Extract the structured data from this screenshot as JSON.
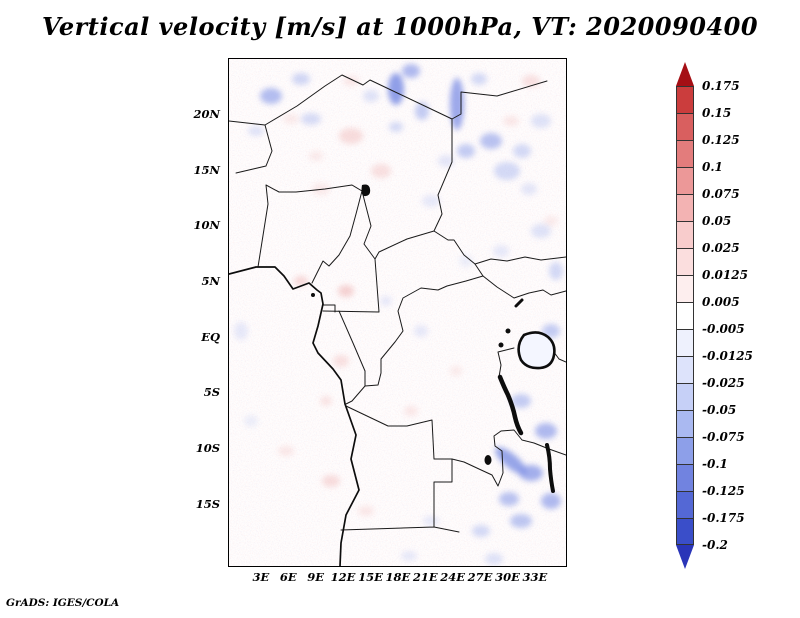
{
  "title": "Vertical velocity [m/s] at 1000hPa, VT: 2020090400",
  "attribution": "GrADS: IGES/COLA",
  "chart_data": {
    "type": "heatmap",
    "title": "Vertical velocity [m/s] at 1000hPa, VT: 2020090400",
    "variable": "Vertical velocity",
    "units": "m/s",
    "level": "1000hPa",
    "valid_time": "2020090400",
    "region": "Central Africa map with country borders and lakes",
    "lon_range_deg_east": [
      -0.6,
      36.3
    ],
    "lat_range_deg_north": [
      -20.4,
      25.1
    ],
    "grid": false,
    "legend_position": "right",
    "x_ticks": [
      {
        "label": "3E",
        "lon": 3
      },
      {
        "label": "6E",
        "lon": 6
      },
      {
        "label": "9E",
        "lon": 9
      },
      {
        "label": "12E",
        "lon": 12
      },
      {
        "label": "15E",
        "lon": 15
      },
      {
        "label": "18E",
        "lon": 18
      },
      {
        "label": "21E",
        "lon": 21
      },
      {
        "label": "24E",
        "lon": 24
      },
      {
        "label": "27E",
        "lon": 27
      },
      {
        "label": "30E",
        "lon": 30
      },
      {
        "label": "33E",
        "lon": 33
      }
    ],
    "y_ticks": [
      {
        "label": "20N",
        "lat": 20
      },
      {
        "label": "15N",
        "lat": 15
      },
      {
        "label": "10N",
        "lat": 10
      },
      {
        "label": "5N",
        "lat": 5
      },
      {
        "label": "EQ",
        "lat": 0
      },
      {
        "label": "5S",
        "lat": -5
      },
      {
        "label": "10S",
        "lat": -10
      },
      {
        "label": "15S",
        "lat": -15
      }
    ],
    "colorbar": {
      "labels": [
        "0.175",
        "0.15",
        "0.125",
        "0.1",
        "0.075",
        "0.05",
        "0.025",
        "0.0125",
        "0.005",
        "-0.005",
        "-0.0125",
        "-0.025",
        "-0.05",
        "-0.075",
        "-0.1",
        "-0.125",
        "-0.175",
        "-0.2"
      ],
      "colors": [
        "#a50f15",
        "#cb3d3d",
        "#d95f5f",
        "#e37c7c",
        "#ec9898",
        "#f3b3b3",
        "#f8cccc",
        "#fbdede",
        "#fdeeee",
        "#ffffff",
        "#eef1fd",
        "#dde3fb",
        "#c6d0f7",
        "#aab9f1",
        "#8d9fe9",
        "#7183e0",
        "#5468d5",
        "#3a4ec9",
        "#2a35b8"
      ],
      "top_arrow": true,
      "bottom_arrow": true,
      "field_summary": "Mostly near-zero (white) with weak pink (positive) speckle; stronger negative (blue) patches over the Sahara highlands near 18-23N, along 24-27E at 10-15N, and over the East African rift / Tanzania-Zambia region in the southeast"
    }
  }
}
